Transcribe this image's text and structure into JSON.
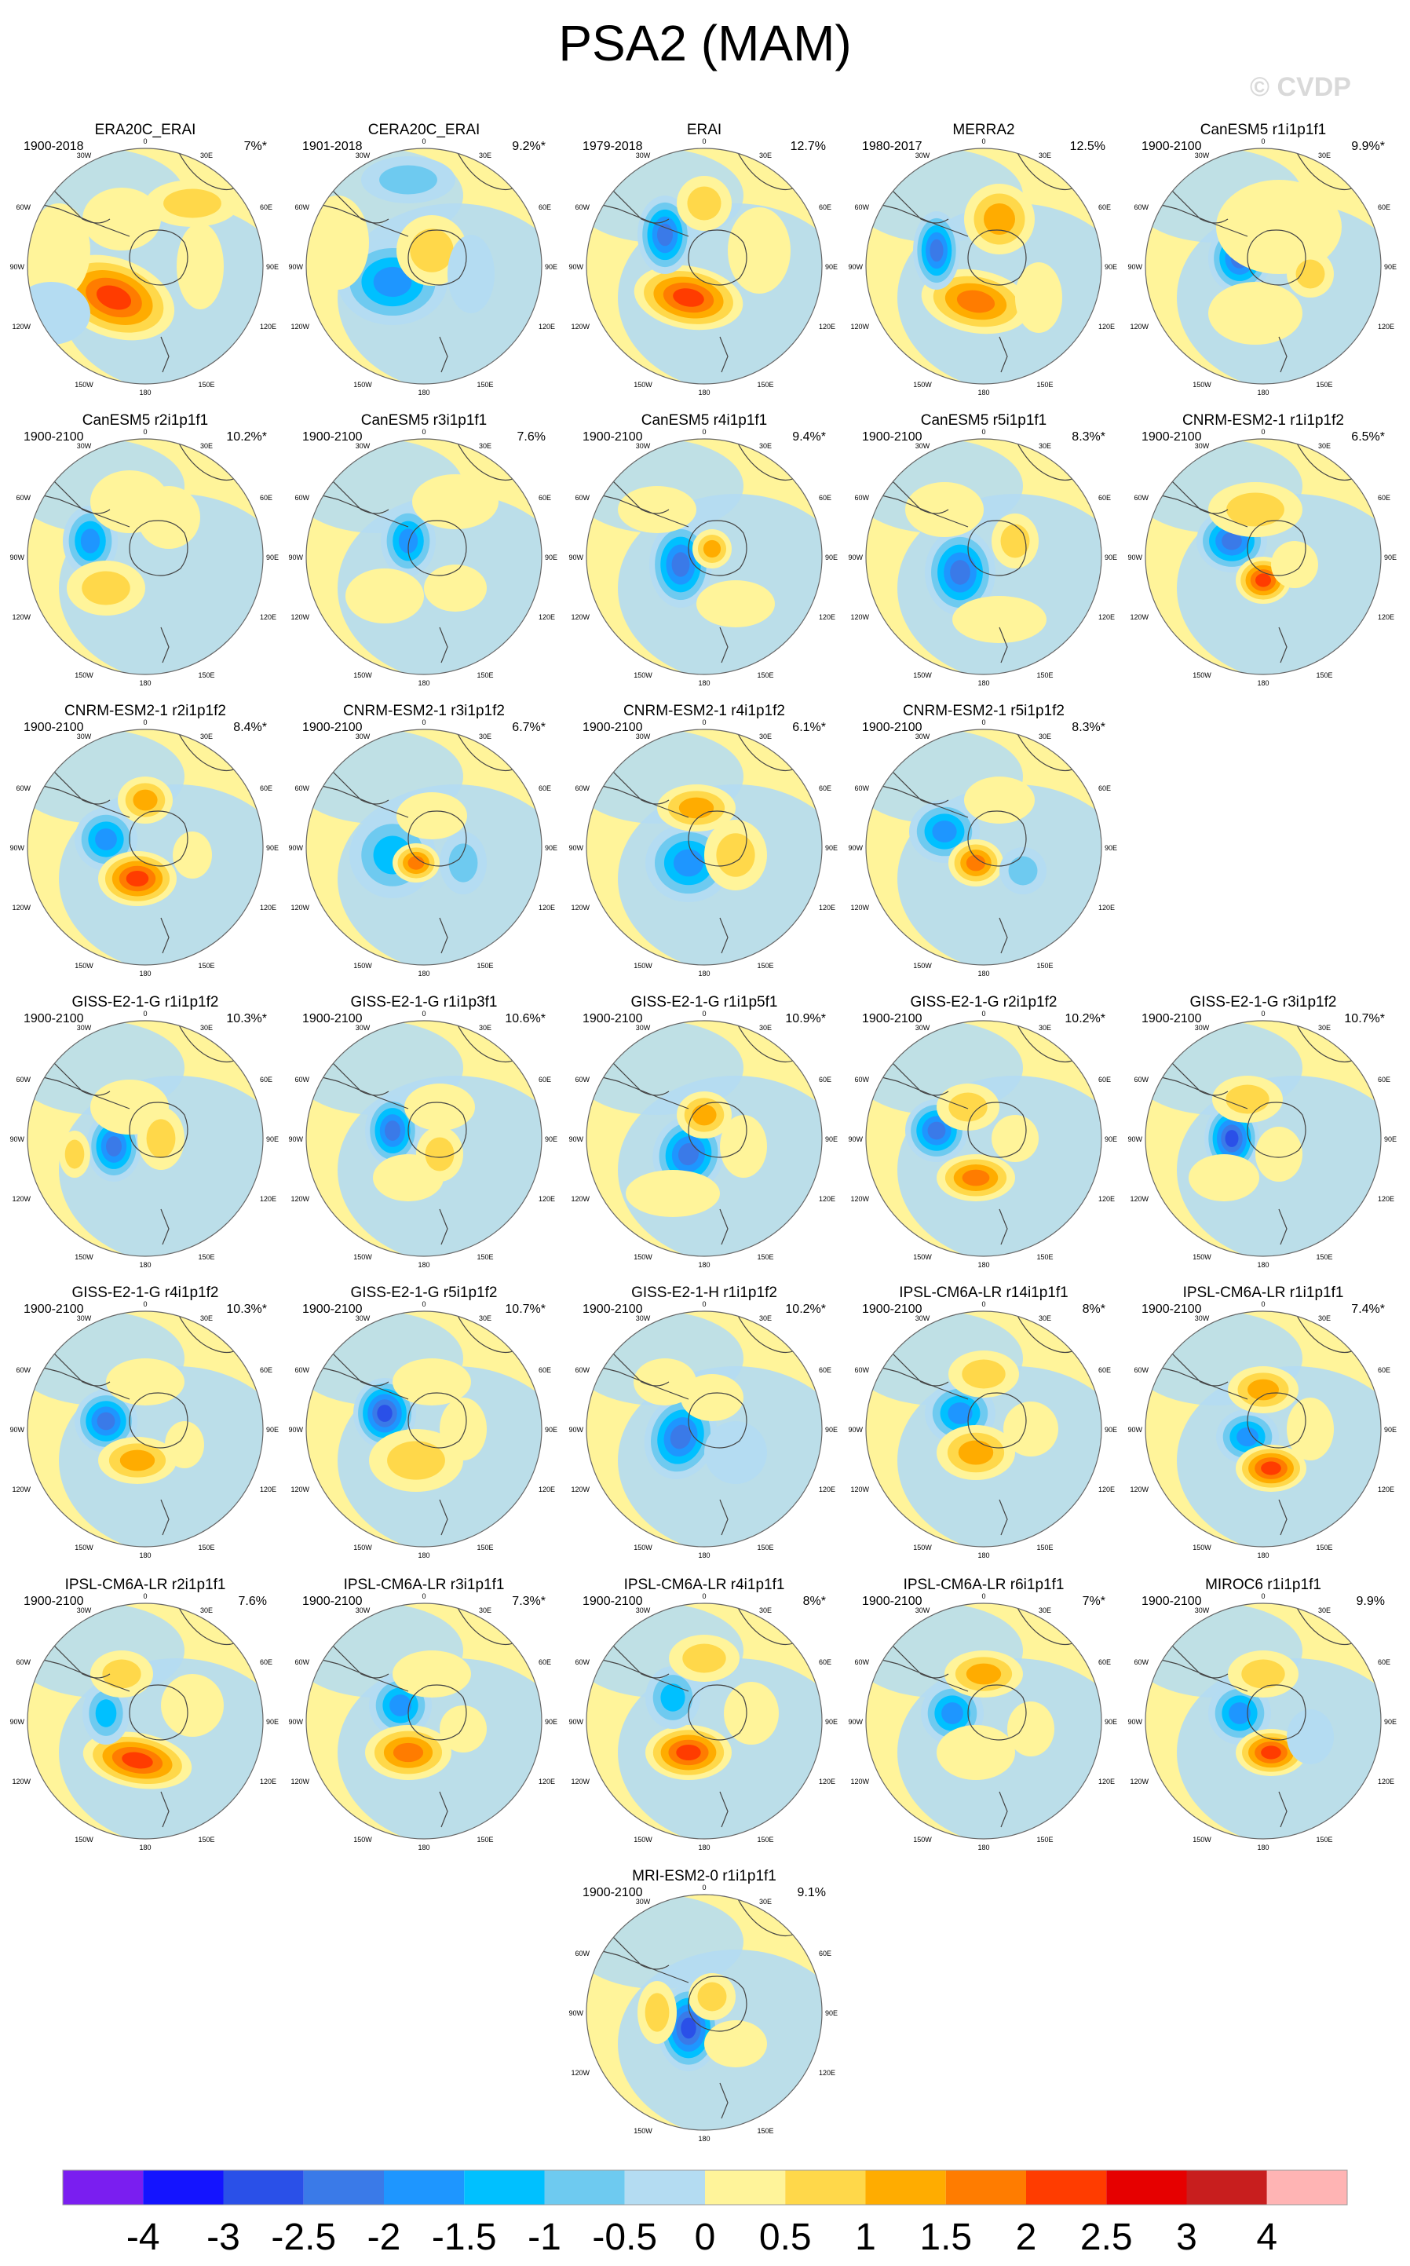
{
  "title": "PSA2 (MAM)",
  "watermark": "© CVDP",
  "lon_labels": {
    "top": "0",
    "upper_left": "30W",
    "upper_right": "30E",
    "mid_upper_left": "60W",
    "mid_upper_right": "60E",
    "left": "90W",
    "right": "90E",
    "lower_left": "120W",
    "lower_right": "120E",
    "bottom_left": "150W",
    "bottom_right": "150E",
    "bottom": "180"
  },
  "panels": [
    {
      "title": "ERA20C_ERAI",
      "period": "1900-2018",
      "pct": "7%*"
    },
    {
      "title": "CERA20C_ERAI",
      "period": "1901-2018",
      "pct": "9.2%*"
    },
    {
      "title": "ERAI",
      "period": "1979-2018",
      "pct": "12.7%"
    },
    {
      "title": "MERRA2",
      "period": "1980-2017",
      "pct": "12.5%"
    },
    {
      "title": "CanESM5 r1i1p1f1",
      "period": "1900-2100",
      "pct": "9.9%*"
    },
    {
      "title": "CanESM5 r2i1p1f1",
      "period": "1900-2100",
      "pct": "10.2%*"
    },
    {
      "title": "CanESM5 r3i1p1f1",
      "period": "1900-2100",
      "pct": "7.6%"
    },
    {
      "title": "CanESM5 r4i1p1f1",
      "period": "1900-2100",
      "pct": "9.4%*"
    },
    {
      "title": "CanESM5 r5i1p1f1",
      "period": "1900-2100",
      "pct": "8.3%*"
    },
    {
      "title": "CNRM-ESM2-1 r1i1p1f2",
      "period": "1900-2100",
      "pct": "6.5%*"
    },
    {
      "title": "CNRM-ESM2-1 r2i1p1f2",
      "period": "1900-2100",
      "pct": "8.4%*"
    },
    {
      "title": "CNRM-ESM2-1 r3i1p1f2",
      "period": "1900-2100",
      "pct": "6.7%*"
    },
    {
      "title": "CNRM-ESM2-1 r4i1p1f2",
      "period": "1900-2100",
      "pct": "6.1%*"
    },
    {
      "title": "CNRM-ESM2-1 r5i1p1f2",
      "period": "1900-2100",
      "pct": "8.3%*"
    },
    {
      "title": "GISS-E2-1-G r1i1p1f2",
      "period": "1900-2100",
      "pct": "10.3%*"
    },
    {
      "title": "GISS-E2-1-G r1i1p3f1",
      "period": "1900-2100",
      "pct": "10.6%*"
    },
    {
      "title": "GISS-E2-1-G r1i1p5f1",
      "period": "1900-2100",
      "pct": "10.9%*"
    },
    {
      "title": "GISS-E2-1-G r2i1p1f2",
      "period": "1900-2100",
      "pct": "10.2%*"
    },
    {
      "title": "GISS-E2-1-G r3i1p1f2",
      "period": "1900-2100",
      "pct": "10.7%*"
    },
    {
      "title": "GISS-E2-1-G r4i1p1f2",
      "period": "1900-2100",
      "pct": "10.3%*"
    },
    {
      "title": "GISS-E2-1-G r5i1p1f2",
      "period": "1900-2100",
      "pct": "10.7%*"
    },
    {
      "title": "GISS-E2-1-H r1i1p1f2",
      "period": "1900-2100",
      "pct": "10.2%*"
    },
    {
      "title": "IPSL-CM6A-LR r14i1p1f1",
      "period": "1900-2100",
      "pct": "8%*"
    },
    {
      "title": "IPSL-CM6A-LR r1i1p1f1",
      "period": "1900-2100",
      "pct": "7.4%*"
    },
    {
      "title": "IPSL-CM6A-LR r2i1p1f1",
      "period": "1900-2100",
      "pct": "7.6%"
    },
    {
      "title": "IPSL-CM6A-LR r3i1p1f1",
      "period": "1900-2100",
      "pct": "7.3%*"
    },
    {
      "title": "IPSL-CM6A-LR r4i1p1f1",
      "period": "1900-2100",
      "pct": "8%*"
    },
    {
      "title": "IPSL-CM6A-LR r6i1p1f1",
      "period": "1900-2100",
      "pct": "7%*"
    },
    {
      "title": "MIROC6 r1i1p1f1",
      "period": "1900-2100",
      "pct": "9.9%"
    },
    {
      "title": "MRI-ESM2-0 r1i1p1f1",
      "period": "1900-2100",
      "pct": "9.1%"
    }
  ],
  "colorbar": {
    "colors": [
      "#7a1ef0",
      "#1414ff",
      "#2a50e8",
      "#3a7ae8",
      "#1e96ff",
      "#00c0ff",
      "#6ecaf0",
      "#b4dcf2",
      "#fff49a",
      "#ffd84a",
      "#ffac00",
      "#ff7c00",
      "#ff3c00",
      "#e60000",
      "#c81e1e",
      "#ffb4b4"
    ],
    "labels": [
      "-4",
      "-3",
      "-2.5",
      "-2",
      "-1.5",
      "-1",
      "-0.5",
      "0",
      "0.5",
      "1",
      "1.5",
      "2",
      "2.5",
      "3",
      "4"
    ]
  }
}
